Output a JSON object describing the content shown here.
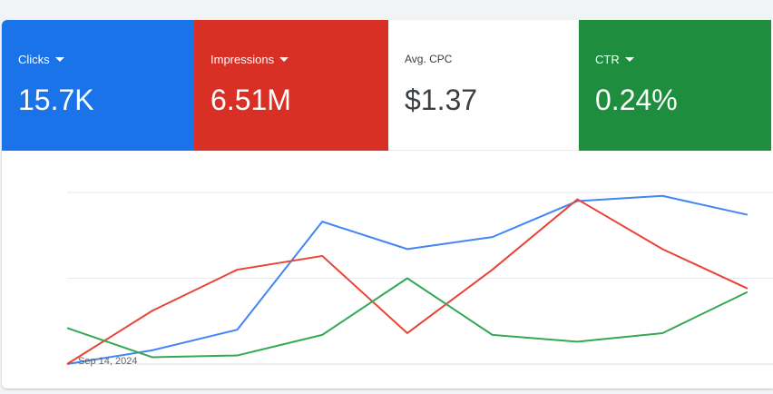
{
  "metrics": {
    "clicks": {
      "label": "Clicks",
      "value": "15.7K",
      "color": "#1a73e8"
    },
    "impressions": {
      "label": "Impressions",
      "value": "6.51M",
      "color": "#d93025"
    },
    "avg_cpc": {
      "label": "Avg. CPC",
      "value": "$1.37"
    },
    "ctr": {
      "label": "CTR",
      "value": "0.24%",
      "color": "#1e8e3e"
    }
  },
  "chart_data": {
    "type": "line",
    "x_label_shown": "Sep 14, 2024",
    "x": [
      1,
      2,
      3,
      4,
      5,
      6,
      7,
      8,
      9
    ],
    "ylim": [
      0,
      100
    ],
    "grid": true,
    "series": [
      {
        "color": "#4285f4",
        "values": [
          0,
          8,
          20,
          83,
          67,
          74,
          95,
          98,
          87
        ]
      },
      {
        "color": "#ea4335",
        "values": [
          0,
          31,
          55,
          63,
          18,
          55,
          96,
          67,
          44
        ]
      },
      {
        "color": "#34a853",
        "values": [
          21,
          4,
          5,
          17,
          50,
          17,
          13,
          18,
          42
        ]
      }
    ]
  }
}
